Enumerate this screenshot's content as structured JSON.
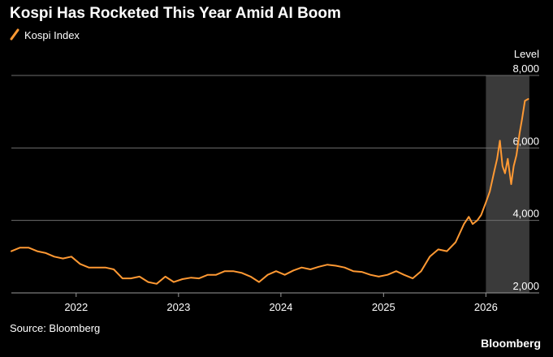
{
  "chart_data": {
    "type": "line",
    "title": "Kospi Has Rocketed This Year Amid AI Boom",
    "ylabel": "Level",
    "ylim": [
      2000,
      8000
    ],
    "y_ticks": [
      "2,000",
      "4,000",
      "6,000",
      "8,000"
    ],
    "y_tick_values": [
      2000,
      4000,
      6000,
      8000
    ],
    "x_ticks": [
      "2022",
      "2023",
      "2024",
      "2025",
      "2026"
    ],
    "x_tick_dates": [
      "2022-01-01",
      "2023-01-01",
      "2024-01-01",
      "2025-01-01",
      "2026-01-01"
    ],
    "xlim": [
      "2021-05-15",
      "2026-07-10"
    ],
    "grid": "horizontal",
    "legend_placement": "top-left",
    "series": [
      {
        "name": "Kospi Index",
        "color": "#ff9933",
        "x": [
          "2021-05-15",
          "2021-06-15",
          "2021-07-15",
          "2021-08-15",
          "2021-09-15",
          "2021-10-15",
          "2021-11-15",
          "2021-12-15",
          "2022-01-15",
          "2022-02-15",
          "2022-03-15",
          "2022-04-15",
          "2022-05-15",
          "2022-06-15",
          "2022-07-15",
          "2022-08-15",
          "2022-09-15",
          "2022-10-15",
          "2022-11-15",
          "2022-12-15",
          "2023-01-15",
          "2023-02-15",
          "2023-03-15",
          "2023-04-15",
          "2023-05-15",
          "2023-06-15",
          "2023-07-15",
          "2023-08-15",
          "2023-09-15",
          "2023-10-15",
          "2023-11-15",
          "2023-12-15",
          "2024-01-15",
          "2024-02-15",
          "2024-03-15",
          "2024-04-15",
          "2024-05-15",
          "2024-06-15",
          "2024-07-15",
          "2024-08-15",
          "2024-09-15",
          "2024-10-15",
          "2024-11-15",
          "2024-12-15",
          "2025-01-15",
          "2025-02-15",
          "2025-03-15",
          "2025-04-15",
          "2025-05-15",
          "2025-06-15",
          "2025-07-15",
          "2025-08-15",
          "2025-09-15",
          "2025-10-15",
          "2025-11-01",
          "2025-11-15",
          "2025-12-01",
          "2025-12-15",
          "2026-01-01",
          "2026-01-15",
          "2026-02-01",
          "2026-02-10",
          "2026-02-20",
          "2026-03-01",
          "2026-03-10",
          "2026-03-20",
          "2026-04-01",
          "2026-04-10",
          "2026-04-20",
          "2026-05-01",
          "2026-05-10",
          "2026-05-20",
          "2026-06-01"
        ],
        "values": [
          3150,
          3250,
          3250,
          3150,
          3100,
          3000,
          2950,
          3000,
          2800,
          2700,
          2700,
          2700,
          2650,
          2400,
          2400,
          2450,
          2300,
          2250,
          2450,
          2300,
          2380,
          2420,
          2400,
          2500,
          2500,
          2600,
          2600,
          2550,
          2450,
          2300,
          2500,
          2600,
          2500,
          2620,
          2700,
          2650,
          2720,
          2780,
          2750,
          2700,
          2600,
          2580,
          2500,
          2450,
          2500,
          2600,
          2500,
          2400,
          2600,
          3000,
          3200,
          3150,
          3400,
          3900,
          4100,
          3900,
          4000,
          4150,
          4500,
          4800,
          5400,
          5700,
          6200,
          5500,
          5300,
          5700,
          5000,
          5500,
          5800,
          6400,
          6800,
          7300,
          7350
        ]
      }
    ],
    "shaded_region": {
      "from": "2026-01-01",
      "to": "2026-06-05"
    },
    "source": "Source: Bloomberg",
    "brand": "Bloomberg"
  }
}
